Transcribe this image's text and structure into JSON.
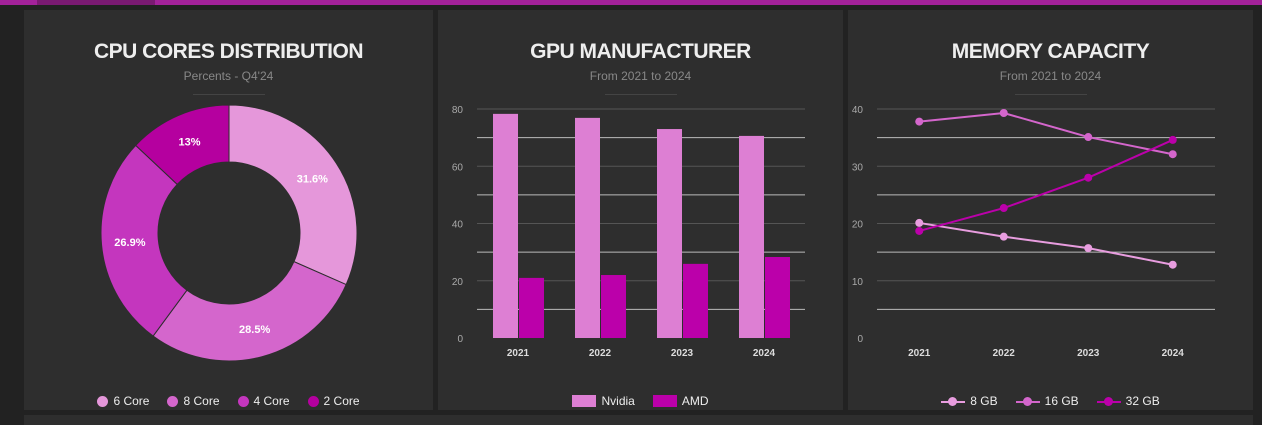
{
  "colors": {
    "accent": "#a3229a",
    "panel": "#2e2e2e",
    "background": "#222222"
  },
  "cpu": {
    "title": "CPU CORES DISTRIBUTION",
    "subtitle": "Percents - Q4'24",
    "chart_data": {
      "type": "pie",
      "donut": true,
      "categories": [
        "6 Core",
        "8 Core",
        "4 Core",
        "2 Core"
      ],
      "values": [
        31.6,
        28.5,
        26.9,
        13
      ],
      "labels": [
        "31.6%",
        "28.5%",
        "26.9%",
        "13%"
      ],
      "colors": [
        "#e597da",
        "#d466cc",
        "#c436be",
        "#b5009f"
      ],
      "legend": "bottom"
    }
  },
  "gpu": {
    "title": "GPU MANUFACTURER",
    "subtitle": "From 2021 to 2024",
    "chart_data": {
      "type": "bar",
      "categories": [
        "2021",
        "2022",
        "2023",
        "2024"
      ],
      "series": [
        {
          "name": "Nvidia",
          "values": [
            78.3,
            76.9,
            73,
            70.6
          ],
          "color": "#dd7fd3"
        },
        {
          "name": "AMD",
          "values": [
            21,
            22,
            25.9,
            28.3
          ],
          "color": "#bb00aa"
        }
      ],
      "ylim": [
        0,
        80
      ],
      "yticks": [
        "0",
        "20",
        "40",
        "60",
        "80"
      ],
      "grid": true,
      "legend": "bottom"
    }
  },
  "memory": {
    "title": "MEMORY CAPACITY",
    "subtitle": "From 2021 to 2024",
    "chart_data": {
      "type": "line",
      "categories": [
        "2021",
        "2022",
        "2023",
        "2024"
      ],
      "series": [
        {
          "name": "8 GB",
          "values": [
            20.1,
            17.7,
            15.7,
            12.8
          ],
          "color": "#e89ddf"
        },
        {
          "name": "16 GB",
          "values": [
            37.8,
            39.3,
            35.1,
            32.1
          ],
          "color": "#d466cc"
        },
        {
          "name": "32 GB",
          "values": [
            18.7,
            22.7,
            28,
            34.6
          ],
          "color": "#bb00aa"
        }
      ],
      "ylim": [
        0,
        40
      ],
      "yticks": [
        "0",
        "10",
        "20",
        "30",
        "40"
      ],
      "grid": true,
      "legend": "bottom"
    }
  }
}
